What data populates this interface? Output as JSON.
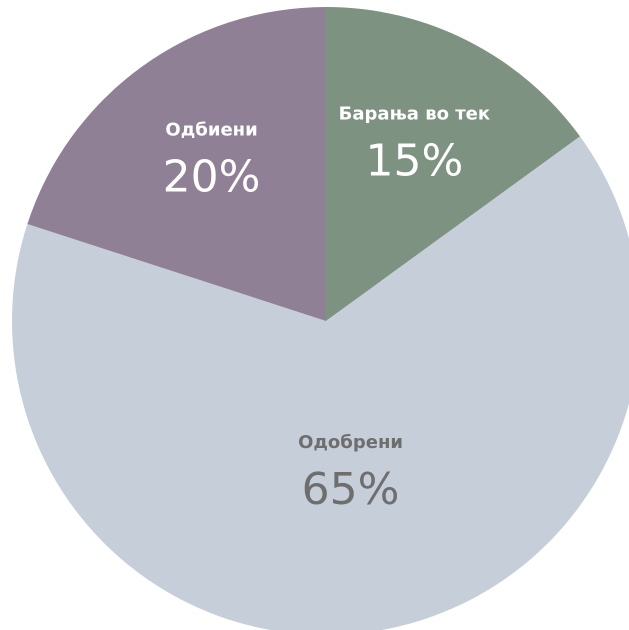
{
  "chart_data": {
    "type": "pie",
    "title": "",
    "start_angle_deg": 0,
    "direction": "clockwise",
    "legend": "none",
    "slices": [
      {
        "label": "Барања во тек",
        "value": 15,
        "value_label": "15%",
        "color": "#7e9282",
        "label_color": "#ffffff"
      },
      {
        "label": "Одобрени",
        "value": 65,
        "value_label": "65%",
        "color": "#c6ced9",
        "label_color": "#6e6e6e"
      },
      {
        "label": "Одбиени",
        "value": 20,
        "value_label": "20%",
        "color": "#8f8096",
        "label_color": "#ffffff"
      }
    ]
  }
}
